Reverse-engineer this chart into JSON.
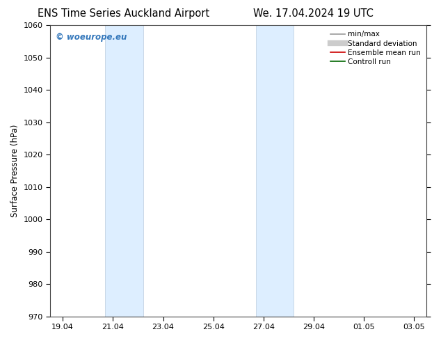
{
  "title_left": "ENS Time Series Auckland Airport",
  "title_right": "We. 17.04.2024 19 UTC",
  "ylabel": "Surface Pressure (hPa)",
  "ylim": [
    970,
    1060
  ],
  "yticks": [
    970,
    980,
    990,
    1000,
    1010,
    1020,
    1030,
    1040,
    1050,
    1060
  ],
  "xtick_labels": [
    "19.04",
    "21.04",
    "23.04",
    "25.04",
    "27.04",
    "29.04",
    "01.05",
    "03.05"
  ],
  "xtick_positions": [
    0,
    2,
    4,
    6,
    8,
    10,
    12,
    14
  ],
  "xlim": [
    -0.5,
    14.5
  ],
  "shaded_bands": [
    {
      "x_start": 1.7,
      "x_end": 3.2
    },
    {
      "x_start": 7.7,
      "x_end": 9.2
    }
  ],
  "shaded_color": "#ddeeff",
  "shaded_edge_color": "#bbccdd",
  "watermark_text": "© woeurope.eu",
  "watermark_color": "#3377bb",
  "legend_items": [
    {
      "label": "min/max",
      "color": "#999999",
      "lw": 1.2
    },
    {
      "label": "Standard deviation",
      "color": "#cccccc",
      "lw": 6
    },
    {
      "label": "Ensemble mean run",
      "color": "#cc0000",
      "lw": 1.2
    },
    {
      "label": "Controll run",
      "color": "#006600",
      "lw": 1.2
    }
  ],
  "bg_color": "#ffffff",
  "title_fontsize": 10.5,
  "tick_label_fontsize": 8,
  "ylabel_fontsize": 8.5,
  "legend_fontsize": 7.5
}
